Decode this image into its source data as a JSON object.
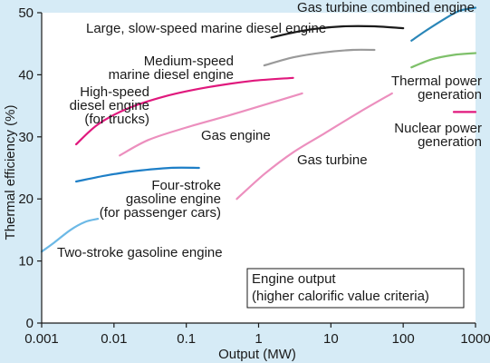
{
  "chart_data": {
    "type": "line",
    "title": "",
    "xlabel": "Output (MW)",
    "ylabel": "Thermal efficiency (%)",
    "xscale": "log",
    "xlim": [
      0.001,
      1000
    ],
    "ylim": [
      0,
      50
    ],
    "xticks": [
      0.001,
      0.01,
      0.1,
      1,
      10,
      100,
      1000
    ],
    "xtick_labels": [
      "0.001",
      "0.01",
      "0.1",
      "1",
      "10",
      "100",
      "1000"
    ],
    "yticks": [
      0,
      10,
      20,
      30,
      40,
      50
    ],
    "ytick_labels": [
      "0",
      "10",
      "20",
      "30",
      "40",
      "50"
    ],
    "grid": false,
    "legend_box": {
      "lines": [
        "Engine output",
        "(higher calorific value criteria)"
      ],
      "placement": "bottom-right"
    },
    "colors": {
      "background": "#d6ebf6",
      "plot_area": "#ffffff",
      "black": "#1a1a1a",
      "magenta": "#e0197d",
      "pink": "#ec8fbe",
      "blue": "#1e7fc7",
      "light_blue": "#6cb9e6",
      "gray": "#9a9a9a",
      "teal": "#2a86b8",
      "green": "#7ec06a"
    },
    "series": [
      {
        "color": "black",
        "label": "Large, slow-speed marine diesel engine",
        "points": [
          [
            1.5,
            46
          ],
          [
            3,
            46.8
          ],
          [
            6,
            47.4
          ],
          [
            15,
            47.8
          ],
          [
            40,
            47.8
          ],
          [
            100,
            47.5
          ]
        ]
      },
      {
        "color": "gray",
        "label": [
          "Medium-speed",
          "marine diesel engine"
        ],
        "points": [
          [
            1.2,
            41.5
          ],
          [
            3,
            42.8
          ],
          [
            8,
            43.6
          ],
          [
            20,
            44
          ],
          [
            40,
            44
          ]
        ]
      },
      {
        "color": "magenta",
        "label": [
          "High-speed",
          "diesel engine",
          "(for trucks)"
        ],
        "points": [
          [
            0.003,
            28.8
          ],
          [
            0.006,
            32
          ],
          [
            0.015,
            34.5
          ],
          [
            0.05,
            36.5
          ],
          [
            0.2,
            38
          ],
          [
            0.8,
            39
          ],
          [
            3,
            39.5
          ]
        ]
      },
      {
        "color": "pink",
        "label": "Gas engine",
        "points": [
          [
            0.012,
            27
          ],
          [
            0.03,
            29.5
          ],
          [
            0.1,
            31.5
          ],
          [
            0.4,
            33.5
          ],
          [
            1.5,
            35.5
          ],
          [
            4,
            37
          ]
        ]
      },
      {
        "color": "pink",
        "label": "Gas turbine",
        "points": [
          [
            0.5,
            20
          ],
          [
            1.2,
            24
          ],
          [
            3,
            27.5
          ],
          [
            8,
            30.5
          ],
          [
            25,
            34
          ],
          [
            70,
            37
          ]
        ]
      },
      {
        "color": "blue",
        "label": [
          "Four-stroke",
          "gasoline engine",
          "(for passenger cars)"
        ],
        "points": [
          [
            0.003,
            22.8
          ],
          [
            0.008,
            23.8
          ],
          [
            0.02,
            24.5
          ],
          [
            0.06,
            25
          ],
          [
            0.15,
            25
          ]
        ]
      },
      {
        "color": "light_blue",
        "label": "Two-stroke gasoline engine",
        "points": [
          [
            0.001,
            11.5
          ],
          [
            0.0015,
            13
          ],
          [
            0.0025,
            15
          ],
          [
            0.004,
            16.3
          ],
          [
            0.006,
            16.8
          ]
        ]
      },
      {
        "color": "teal",
        "label": "Gas turbine combined engine",
        "points": [
          [
            130,
            45.5
          ],
          [
            200,
            47
          ],
          [
            350,
            48.8
          ],
          [
            600,
            50.3
          ],
          [
            1000,
            50.8
          ]
        ]
      },
      {
        "color": "green",
        "label": [
          "Thermal power",
          "generation"
        ],
        "points": [
          [
            130,
            41.2
          ],
          [
            250,
            42.5
          ],
          [
            500,
            43.2
          ],
          [
            1000,
            43.5
          ]
        ]
      },
      {
        "color": "magenta",
        "label": [
          "Nuclear power",
          "generation"
        ],
        "points": [
          [
            500,
            34
          ],
          [
            1000,
            34
          ]
        ]
      }
    ]
  }
}
